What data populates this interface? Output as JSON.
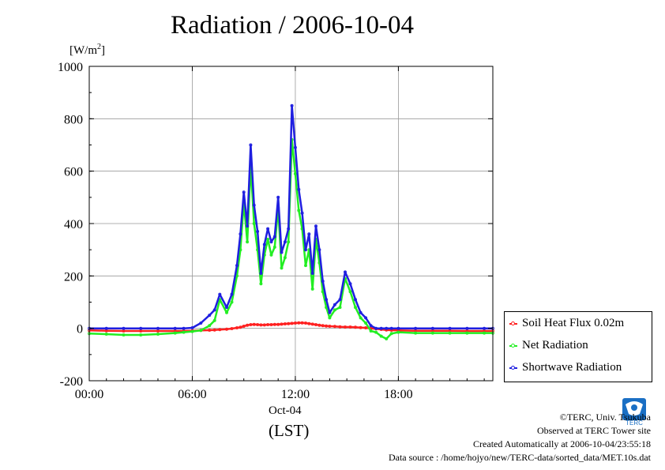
{
  "colors": {
    "soil": "#ff2020",
    "net": "#22ee22",
    "shortwave": "#1f1fe0"
  },
  "footer": {
    "copyright": "©TERC, Univ. Tsukuba",
    "observed": "Observed at TERC Tower site",
    "created": "Created Automatically at 2006-10-04/23:55:18",
    "source": "Data source : /home/hojyo/new/TERC-data/sorted_data/MET.10s.dat"
  },
  "logo": {
    "icon": "terc-logo",
    "text": "TERC"
  },
  "chart_data": {
    "type": "line",
    "title": "Radiation / 2006-10-04",
    "ylabel": "[W/m2]",
    "ylim": [
      -200,
      1000
    ],
    "yticks": [
      -200,
      0,
      200,
      400,
      600,
      800,
      1000
    ],
    "xlim": [
      0,
      23.5
    ],
    "xticks": [
      {
        "hour": 0,
        "label": "00:00"
      },
      {
        "hour": 6,
        "label": "06:00"
      },
      {
        "hour": 12,
        "label": "12:00"
      },
      {
        "hour": 18,
        "label": "18:00"
      }
    ],
    "xdate_label": "Oct-04",
    "xlabel": "(LST)",
    "grid": true,
    "legend_position": "bottom-right-outside",
    "x": [
      0,
      1,
      2,
      3,
      4,
      5,
      5.5,
      6,
      6.5,
      7,
      7.3,
      7.6,
      8,
      8.3,
      8.6,
      8.8,
      9,
      9.2,
      9.4,
      9.6,
      9.8,
      10,
      10.2,
      10.4,
      10.6,
      10.8,
      11,
      11.2,
      11.4,
      11.6,
      11.8,
      12,
      12.2,
      12.4,
      12.6,
      12.8,
      13,
      13.2,
      13.4,
      13.6,
      13.8,
      14,
      14.3,
      14.6,
      14.9,
      15.2,
      15.5,
      15.8,
      16.1,
      16.4,
      16.7,
      17,
      17.3,
      17.6,
      18,
      19,
      20,
      21,
      22,
      23,
      23.5
    ],
    "series": [
      {
        "name": "Soil Heat Flux 0.02m",
        "values": [
          -8,
          -9,
          -10,
          -10,
          -10,
          -10,
          -10,
          -9,
          -8,
          -7,
          -6,
          -5,
          -3,
          -1,
          2,
          4,
          8,
          12,
          14,
          15,
          14,
          13,
          13,
          14,
          14,
          15,
          15,
          16,
          17,
          18,
          19,
          20,
          21,
          21,
          20,
          18,
          16,
          14,
          12,
          10,
          9,
          8,
          7,
          6,
          5,
          5,
          4,
          3,
          2,
          0,
          -2,
          -4,
          -6,
          -7,
          -8,
          -9,
          -9,
          -9,
          -10,
          -10,
          -10
        ]
      },
      {
        "name": "Net Radiation",
        "values": [
          -20,
          -22,
          -25,
          -25,
          -22,
          -18,
          -15,
          -12,
          -8,
          10,
          30,
          110,
          60,
          100,
          200,
          300,
          480,
          330,
          620,
          400,
          300,
          170,
          280,
          340,
          280,
          310,
          460,
          230,
          270,
          330,
          720,
          590,
          450,
          380,
          240,
          300,
          150,
          340,
          250,
          140,
          80,
          40,
          70,
          80,
          190,
          140,
          80,
          40,
          20,
          -10,
          -15,
          -30,
          -40,
          -20,
          -15,
          -18,
          -18,
          -18,
          -18,
          -18,
          -18
        ]
      },
      {
        "name": "Shortwave Radiation",
        "values": [
          0,
          0,
          0,
          0,
          0,
          0,
          0,
          2,
          20,
          50,
          70,
          130,
          80,
          130,
          240,
          360,
          520,
          390,
          700,
          470,
          370,
          210,
          320,
          380,
          330,
          350,
          500,
          290,
          330,
          380,
          850,
          690,
          530,
          440,
          300,
          360,
          210,
          390,
          300,
          180,
          110,
          60,
          90,
          110,
          215,
          170,
          110,
          60,
          40,
          10,
          0,
          0,
          0,
          0,
          0,
          0,
          0,
          0,
          0,
          0,
          0
        ]
      }
    ]
  }
}
